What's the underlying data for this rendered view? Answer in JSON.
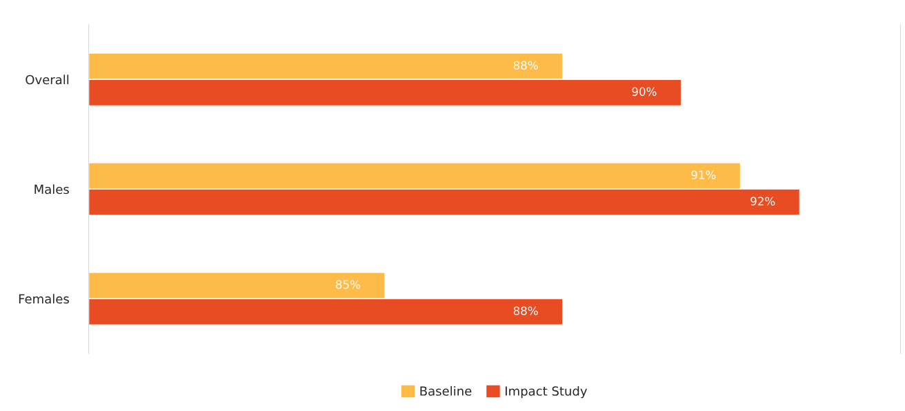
{
  "chart_data": {
    "type": "bar",
    "orientation": "horizontal",
    "categories": [
      "Overall",
      "Males",
      "Females"
    ],
    "series": [
      {
        "name": "Baseline",
        "color": "#ffbb48",
        "values": [
          88,
          91,
          85
        ],
        "value_labels": [
          "88%",
          "91%",
          "85%"
        ]
      },
      {
        "name": "Impact Study",
        "color": "#e84c22",
        "values": [
          90,
          92,
          88
        ],
        "value_labels": [
          "90%",
          "92%",
          "88%"
        ]
      }
    ],
    "xlim": [
      80,
      93.7
    ],
    "data_labels": true,
    "legend": "bottom",
    "grid": false,
    "tick_labels": "y"
  }
}
